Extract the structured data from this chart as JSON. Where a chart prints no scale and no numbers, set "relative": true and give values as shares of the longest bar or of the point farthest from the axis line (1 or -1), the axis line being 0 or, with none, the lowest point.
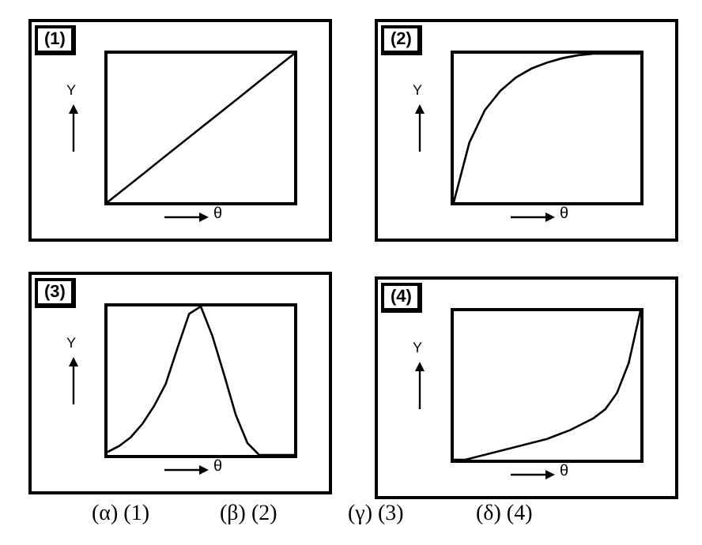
{
  "chart_data": [
    {
      "type": "line",
      "title": "(1)",
      "xlabel": "θ",
      "ylabel": "Y",
      "relative": true,
      "color": "#000000",
      "categories": [
        null,
        null,
        null,
        null,
        null,
        null,
        null,
        null,
        null,
        null,
        null
      ],
      "values": [
        0,
        0.1,
        0.2,
        0.3,
        0.4,
        0.5,
        0.6,
        0.7,
        0.8,
        0.9,
        1
      ]
    },
    {
      "type": "line",
      "title": "(2)",
      "xlabel": "θ",
      "ylabel": "Y",
      "relative": true,
      "color": "#000000",
      "categories": [
        null,
        null,
        null,
        null,
        null,
        null,
        null,
        null,
        null,
        null,
        null,
        null,
        null
      ],
      "values": [
        0,
        0.4,
        0.62,
        0.75,
        0.84,
        0.9,
        0.94,
        0.97,
        0.99,
        1,
        1,
        1,
        1
      ]
    },
    {
      "type": "line",
      "title": "(3)",
      "xlabel": "θ",
      "ylabel": "Y",
      "relative": true,
      "color": "#000000",
      "categories": [
        null,
        null,
        null,
        null,
        null,
        null,
        null,
        null,
        null,
        null,
        null,
        null,
        null,
        null,
        null,
        null,
        null
      ],
      "values": [
        0.02,
        0.06,
        0.12,
        0.21,
        0.33,
        0.48,
        0.72,
        0.95,
        1,
        0.8,
        0.54,
        0.27,
        0.08,
        0,
        0,
        0,
        0
      ]
    },
    {
      "type": "line",
      "title": "(4)",
      "xlabel": "θ",
      "ylabel": "Y",
      "relative": true,
      "color": "#000000",
      "categories": [
        null,
        null,
        null,
        null,
        null,
        null,
        null,
        null,
        null,
        null,
        null,
        null,
        null,
        null,
        null,
        null,
        null
      ],
      "values": [
        0,
        0,
        0.02,
        0.04,
        0.06,
        0.08,
        0.1,
        0.12,
        0.14,
        0.17,
        0.2,
        0.24,
        0.28,
        0.34,
        0.45,
        0.65,
        1
      ],
      "annotations": [
        "(α) (1)",
        "(β) (2)",
        "(γ) (3)",
        "(δ) (4)"
      ]
    }
  ]
}
